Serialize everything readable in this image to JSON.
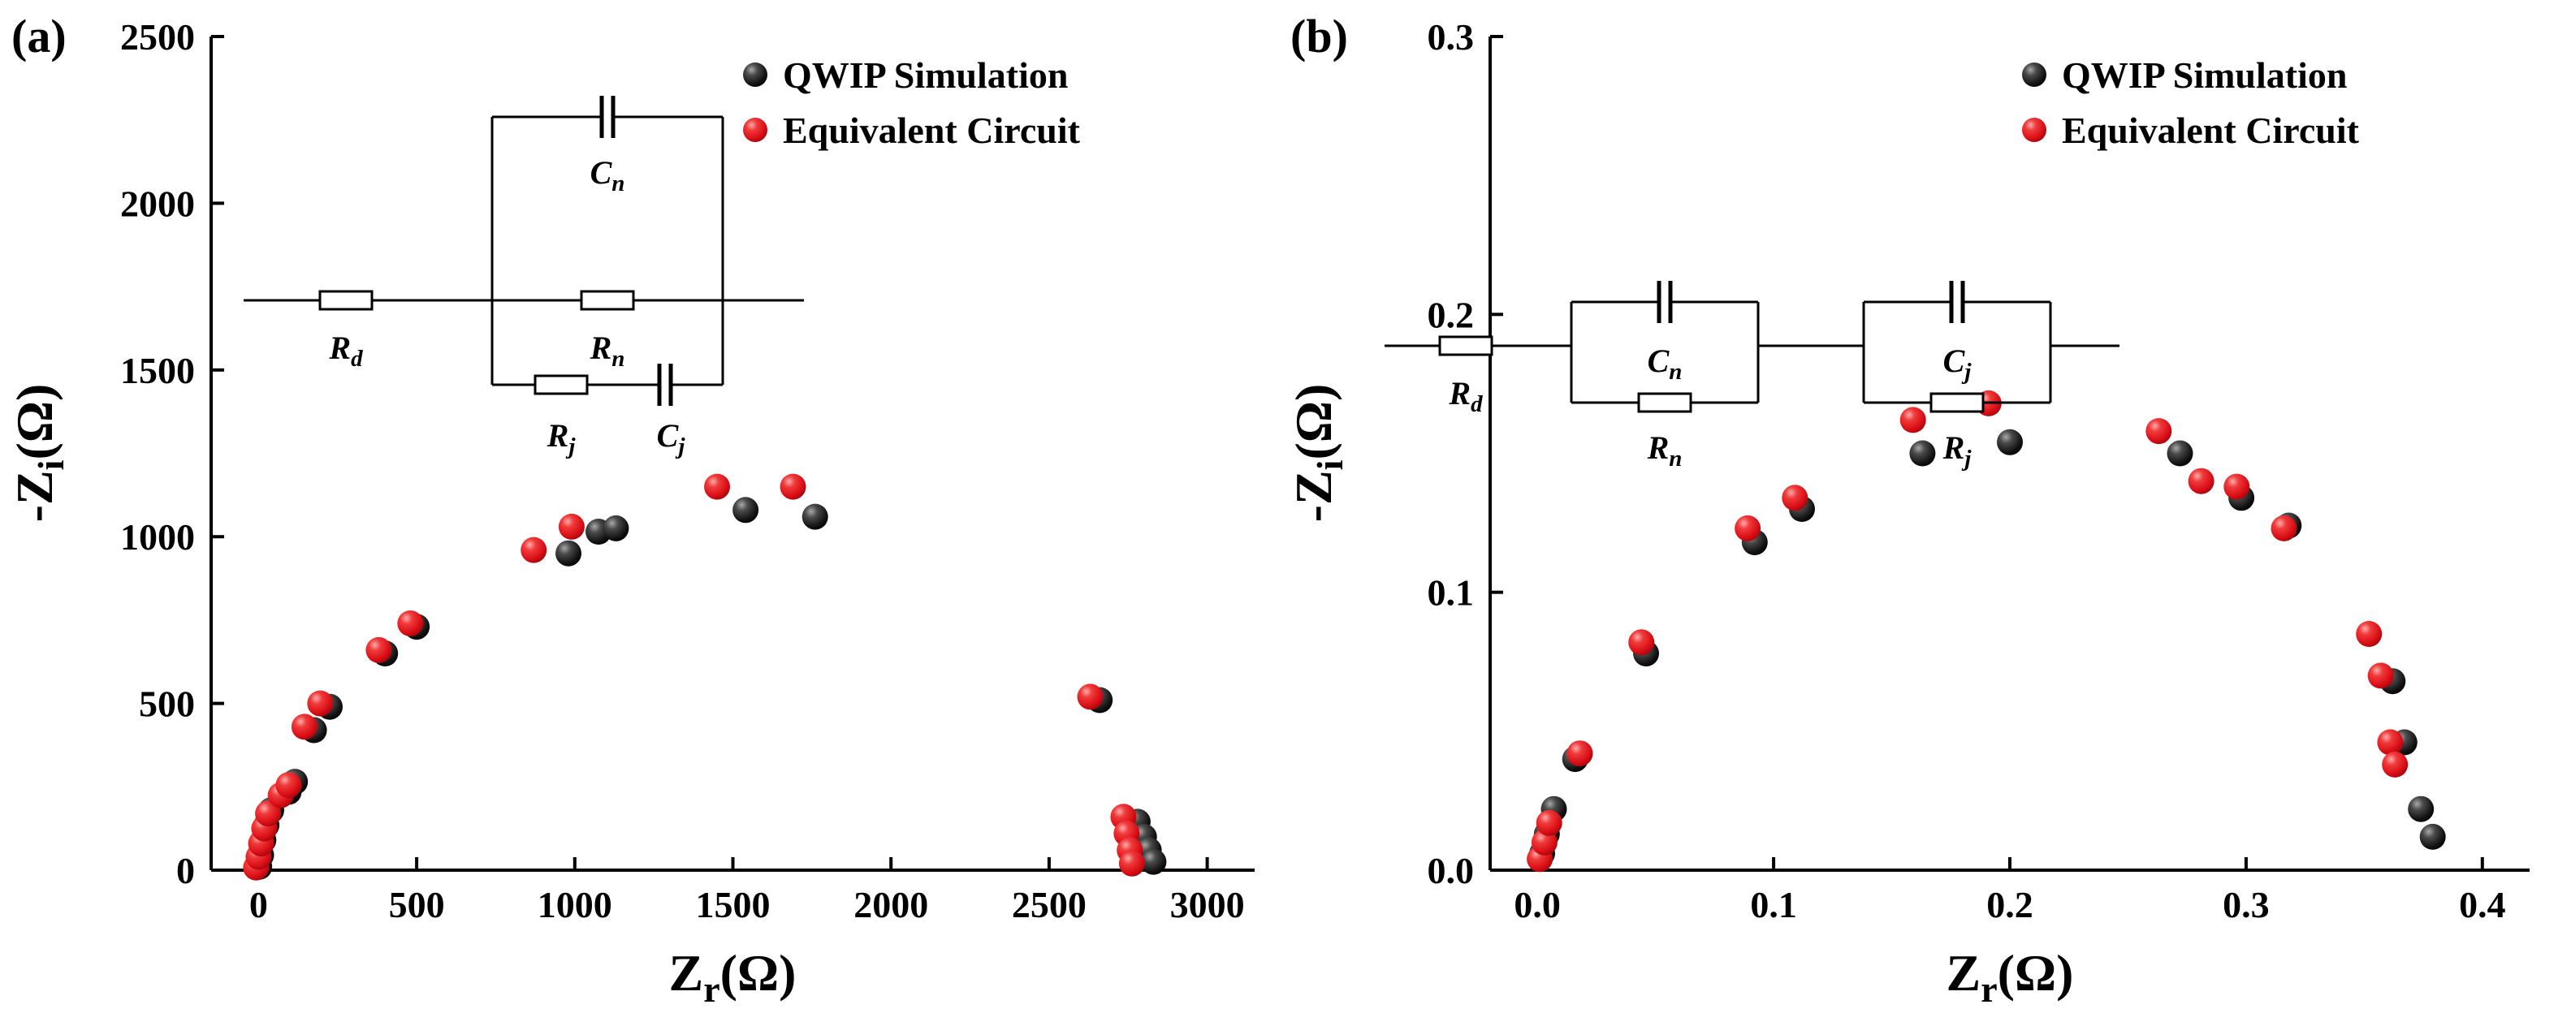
{
  "figure": {
    "background": "#ffffff",
    "series_black_color": "#000000",
    "series_red_color": "#e30613"
  },
  "legend": {
    "items": [
      {
        "label": "QWIP Simulation",
        "marker": "black-sphere"
      },
      {
        "label": "Equivalent Circuit",
        "marker": "red-sphere"
      }
    ]
  },
  "panels": [
    {
      "label": "(a)",
      "x_axis": {
        "prefix": "Z",
        "sub": "r",
        "suffix": "(Ω)"
      },
      "y_axis": {
        "prefix": "-Z",
        "sub": "i",
        "suffix": "(Ω)"
      },
      "circuit": {
        "Rd": {
          "main": "R",
          "sub": "d"
        },
        "Cn": {
          "main": "C",
          "sub": "n"
        },
        "Rn": {
          "main": "R",
          "sub": "n"
        },
        "Rj": {
          "main": "R",
          "sub": "j"
        },
        "Cj": {
          "main": "C",
          "sub": "j"
        }
      }
    },
    {
      "label": "(b)",
      "x_axis": {
        "prefix": "Z",
        "sub": "r",
        "suffix": "(Ω)"
      },
      "y_axis": {
        "prefix": "-Z",
        "sub": "i",
        "suffix": "(Ω)"
      },
      "circuit": {
        "Rd": {
          "main": "R",
          "sub": "d"
        },
        "Cn": {
          "main": "C",
          "sub": "n"
        },
        "Rn": {
          "main": "R",
          "sub": "n"
        },
        "Rj": {
          "main": "R",
          "sub": "j"
        },
        "Cj": {
          "main": "C",
          "sub": "j"
        }
      }
    }
  ],
  "chart_data": [
    {
      "type": "scatter",
      "title": "",
      "xlabel": "Z_r(Ω)",
      "ylabel": "-Z_i(Ω)",
      "xlim": [
        -150,
        3150
      ],
      "ylim": [
        0,
        2500
      ],
      "xticks": {
        "values": [
          0,
          500,
          1000,
          1500,
          2000,
          2500,
          3000
        ],
        "labels": [
          "0",
          "500",
          "1000",
          "1500",
          "2000",
          "2500",
          "3000"
        ]
      },
      "yticks": {
        "values": [
          0,
          500,
          1000,
          1500,
          2000,
          2500
        ],
        "labels": [
          "0",
          "500",
          "1000",
          "1500",
          "2000",
          "2500"
        ]
      },
      "grid": false,
      "legend_position": "top-right",
      "marker_radius": 16,
      "series": [
        {
          "name": "QWIP Simulation",
          "marker": "black-sphere",
          "color": "#000000",
          "points": [
            [
              2,
              10
            ],
            [
              8,
              45
            ],
            [
              15,
              90
            ],
            [
              25,
              135
            ],
            [
              40,
              180
            ],
            [
              95,
              235
            ],
            [
              115,
              265
            ],
            [
              175,
              420
            ],
            [
              225,
              490
            ],
            [
              400,
              650
            ],
            [
              500,
              730
            ],
            [
              980,
              950
            ],
            [
              1075,
              1015
            ],
            [
              1130,
              1025
            ],
            [
              1540,
              1080
            ],
            [
              1760,
              1060
            ],
            [
              2660,
              510
            ],
            [
              2780,
              145
            ],
            [
              2800,
              100
            ],
            [
              2815,
              60
            ],
            [
              2830,
              25
            ]
          ]
        },
        {
          "name": "Equivalent Circuit",
          "marker": "red-sphere",
          "color": "#e30613",
          "points": [
            [
              -8,
              8
            ],
            [
              0,
              40
            ],
            [
              8,
              80
            ],
            [
              18,
              125
            ],
            [
              30,
              170
            ],
            [
              70,
              225
            ],
            [
              95,
              255
            ],
            [
              145,
              430
            ],
            [
              195,
              500
            ],
            [
              380,
              660
            ],
            [
              480,
              740
            ],
            [
              870,
              960
            ],
            [
              990,
              1030
            ],
            [
              1450,
              1150
            ],
            [
              1690,
              1150
            ],
            [
              2630,
              520
            ],
            [
              2735,
              160
            ],
            [
              2745,
              110
            ],
            [
              2755,
              60
            ],
            [
              2762,
              20
            ]
          ]
        }
      ]
    },
    {
      "type": "scatter",
      "title": "",
      "xlabel": "Z_r(Ω)",
      "ylabel": "-Z_i(Ω)",
      "xlim": [
        -0.02,
        0.42
      ],
      "ylim": [
        0,
        0.3
      ],
      "xticks": {
        "values": [
          0,
          0.1,
          0.2,
          0.3,
          0.4
        ],
        "labels": [
          "0.0",
          "0.1",
          "0.2",
          "0.3",
          "0.4"
        ]
      },
      "yticks": {
        "values": [
          0,
          0.1,
          0.2,
          0.3
        ],
        "labels": [
          "0.0",
          "0.1",
          "0.2",
          "0.3"
        ]
      },
      "grid": false,
      "legend_position": "top-right",
      "marker_radius": 16,
      "series": [
        {
          "name": "QWIP Simulation",
          "marker": "black-sphere",
          "color": "#000000",
          "points": [
            [
              0.002,
              0.006
            ],
            [
              0.004,
              0.013
            ],
            [
              0.007,
              0.022
            ],
            [
              0.016,
              0.04
            ],
            [
              0.046,
              0.078
            ],
            [
              0.092,
              0.118
            ],
            [
              0.112,
              0.13
            ],
            [
              0.163,
              0.15
            ],
            [
              0.2,
              0.154
            ],
            [
              0.272,
              0.15
            ],
            [
              0.298,
              0.134
            ],
            [
              0.318,
              0.124
            ],
            [
              0.362,
              0.068
            ],
            [
              0.367,
              0.046
            ],
            [
              0.374,
              0.022
            ],
            [
              0.379,
              0.012
            ]
          ]
        },
        {
          "name": "Equivalent Circuit",
          "marker": "red-sphere",
          "color": "#e30613",
          "points": [
            [
              0.001,
              0.004
            ],
            [
              0.003,
              0.01
            ],
            [
              0.005,
              0.017
            ],
            [
              0.018,
              0.042
            ],
            [
              0.044,
              0.082
            ],
            [
              0.089,
              0.123
            ],
            [
              0.109,
              0.134
            ],
            [
              0.159,
              0.162
            ],
            [
              0.191,
              0.168
            ],
            [
              0.263,
              0.158
            ],
            [
              0.281,
              0.14
            ],
            [
              0.296,
              0.138
            ],
            [
              0.316,
              0.123
            ],
            [
              0.352,
              0.085
            ],
            [
              0.357,
              0.07
            ],
            [
              0.361,
              0.046
            ],
            [
              0.363,
              0.038
            ]
          ]
        }
      ]
    }
  ]
}
